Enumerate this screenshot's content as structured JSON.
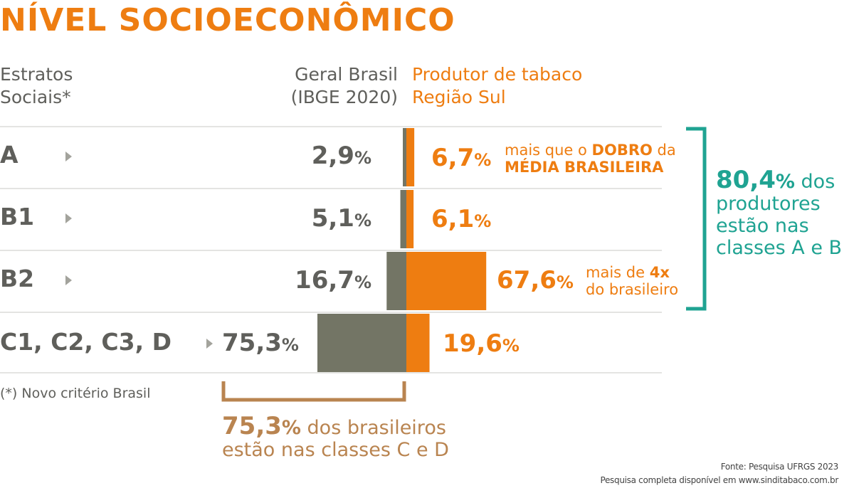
{
  "colors": {
    "orange": "#ee7d11",
    "gray": "#5f5f5b",
    "bar_gray": "#737565",
    "teal": "#1fa392",
    "brown": "#b98450",
    "line": "#c9c9c4"
  },
  "title": "NÍVEL SOCIOECONÔMICO",
  "headers": {
    "col1": "Estratos\nSociais*",
    "col2": "Geral Brasil\n(IBGE 2020)",
    "col3": "Produtor de tabaco\nRegião Sul"
  },
  "chart_data": {
    "type": "bar",
    "categories": [
      "A",
      "B1",
      "B2",
      "C1, C2, C3, D"
    ],
    "series": [
      {
        "name": "Geral Brasil (IBGE 2020)",
        "values": [
          2.9,
          5.1,
          16.7,
          75.3
        ]
      },
      {
        "name": "Produtor de tabaco Região Sul",
        "values": [
          6.7,
          6.1,
          67.6,
          19.6
        ]
      }
    ],
    "value_labels": {
      "brasil": [
        "2,9",
        "5,1",
        "16,7",
        "75,3"
      ],
      "produtor": [
        "6,7",
        "6,1",
        "67,6",
        "19,6"
      ],
      "unit": "%"
    }
  },
  "annotations": {
    "row_a_line1_pre": "mais que o ",
    "row_a_line1_bold": "DOBRO",
    "row_a_line1_post": " da",
    "row_a_line2_bold": "MÉDIA BRASILEIRA",
    "row_b2_line1_pre": "mais de ",
    "row_b2_line1_bold": "4x",
    "row_b2_line2": "do brasileiro"
  },
  "bracket_right": {
    "number": "80,4",
    "pct": "%",
    "line1_rest": " dos",
    "line2": "produtores",
    "line3": "estão nas",
    "line4": "classes A e B"
  },
  "bracket_bottom": {
    "number": "75,3",
    "pct": "%",
    "line1_rest": " dos brasileiros",
    "line2": "estão nas classes C e D"
  },
  "footnote": "(*) Novo critério Brasil",
  "source": {
    "line1": "Fonte: Pesquisa UFRGS 2023",
    "line2": "Pesquisa completa disponível em www.sinditabaco.com.br"
  }
}
